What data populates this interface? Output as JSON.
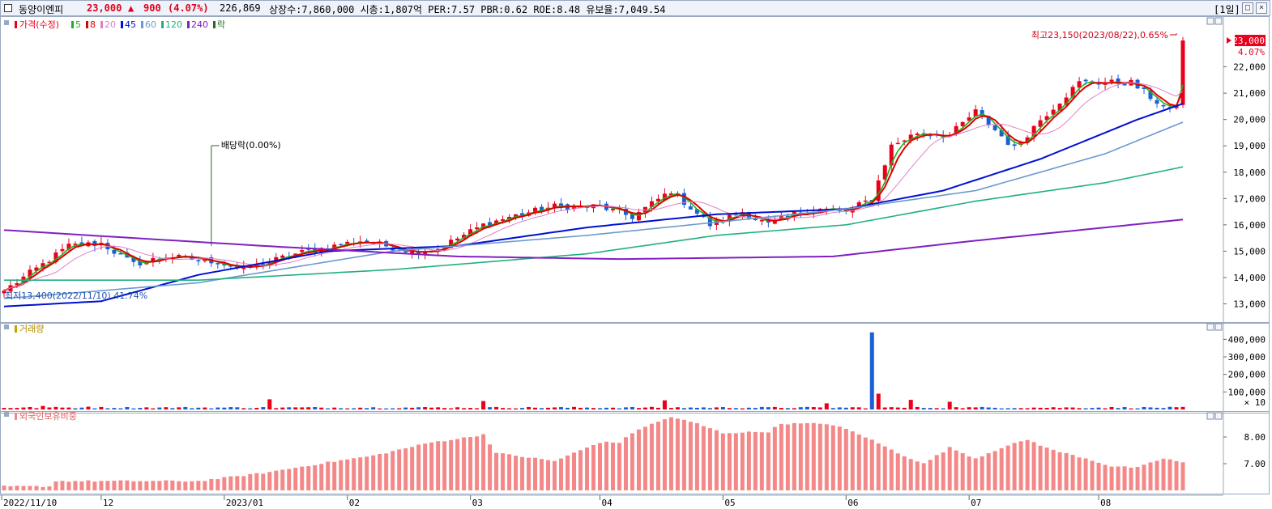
{
  "header": {
    "stock_name": "동양이엔피",
    "price": "23,000",
    "change_arrow": "▲",
    "change": "900",
    "change_pct": "(4.07%)",
    "volume": "226,869",
    "info": "상장수:7,860,000 시총:1,807억 PER:7.57 PBR:0.62 ROE:8.48 유보율:7,049.54",
    "period": "[1일]"
  },
  "legend": {
    "price_label": "가격(수정)",
    "ma": [
      {
        "label": "5",
        "color": "#20b020"
      },
      {
        "label": "8",
        "color": "#e00000"
      },
      {
        "label": "20",
        "color": "#e080c8"
      },
      {
        "label": "45",
        "color": "#0010d0"
      },
      {
        "label": "60",
        "color": "#6a9ad0"
      },
      {
        "label": "120",
        "color": "#20b080"
      },
      {
        "label": "240",
        "color": "#8020c0"
      },
      {
        "label": "락",
        "color": "#207020"
      }
    ],
    "volume_label": "거래량",
    "foreign_label": "외국인보유비중"
  },
  "annotations": {
    "high": "최고23,150(2023/08/22),0.65%",
    "low": "최저13,400(2022/11/10),41.74%",
    "dividend": "배당락(0.00%)",
    "current_price": "23,000",
    "current_pct": "4.07%"
  },
  "chart_data": [
    {
      "type": "candlestick",
      "title": "가격(수정)",
      "ylim": [
        12400,
        23800
      ],
      "yticks": [
        "13,000",
        "14,000",
        "15,000",
        "16,000",
        "17,000",
        "18,000",
        "19,000",
        "20,000",
        "21,000",
        "22,000"
      ],
      "ytick_values": [
        13000,
        14000,
        15000,
        16000,
        17000,
        18000,
        19000,
        20000,
        21000,
        22000
      ],
      "xticks": [
        {
          "label": "2022/11/10",
          "index": 0
        },
        {
          "label": "12",
          "index": 15
        },
        {
          "label": "2023/01",
          "index": 34
        },
        {
          "label": "02",
          "index": 53
        },
        {
          "label": "03",
          "index": 72
        },
        {
          "label": "04",
          "index": 92
        },
        {
          "label": "05",
          "index": 111
        },
        {
          "label": "06",
          "index": 130
        },
        {
          "label": "07",
          "index": 149
        },
        {
          "label": "08",
          "index": 169
        }
      ],
      "n_bars": 183,
      "anchors": [
        [
          0,
          13500
        ],
        [
          6,
          14500
        ],
        [
          10,
          15200
        ],
        [
          15,
          15300
        ],
        [
          20,
          14500
        ],
        [
          25,
          14800
        ],
        [
          33,
          14600
        ],
        [
          37,
          14300
        ],
        [
          45,
          14900
        ],
        [
          55,
          15400
        ],
        [
          63,
          15000
        ],
        [
          67,
          15100
        ],
        [
          74,
          16000
        ],
        [
          78,
          16300
        ],
        [
          85,
          16700
        ],
        [
          92,
          16700
        ],
        [
          97,
          16300
        ],
        [
          103,
          17300
        ],
        [
          109,
          16000
        ],
        [
          114,
          16500
        ],
        [
          118,
          16000
        ],
        [
          122,
          16400
        ],
        [
          126,
          16600
        ],
        [
          130,
          16500
        ],
        [
          134,
          17000
        ],
        [
          137,
          19000
        ],
        [
          141,
          19500
        ],
        [
          146,
          19400
        ],
        [
          150,
          20300
        ],
        [
          156,
          18900
        ],
        [
          160,
          20000
        ],
        [
          166,
          21400
        ],
        [
          174,
          21400
        ],
        [
          180,
          20300
        ],
        [
          185,
          21500
        ],
        [
          187,
          22200
        ],
        [
          188,
          23000
        ]
      ],
      "ma_lines": [
        {
          "name": "5",
          "color": "#20b020",
          "lag": 2
        },
        {
          "name": "8",
          "color": "#e00000",
          "lag": 3
        },
        {
          "name": "20",
          "color": "#e080c8",
          "lag": 8
        },
        {
          "name": "45",
          "color": "#0010d0",
          "points": [
            [
              0,
              12900
            ],
            [
              15,
              13100
            ],
            [
              30,
              14100
            ],
            [
              50,
              15000
            ],
            [
              70,
              15200
            ],
            [
              90,
              15900
            ],
            [
              110,
              16400
            ],
            [
              130,
              16600
            ],
            [
              145,
              17300
            ],
            [
              160,
              18500
            ],
            [
              175,
              20000
            ],
            [
              182,
              20600
            ]
          ]
        },
        {
          "name": "60",
          "color": "#6a9ad0",
          "points": [
            [
              0,
              13200
            ],
            [
              30,
              13800
            ],
            [
              60,
              15000
            ],
            [
              90,
              15600
            ],
            [
              110,
              16100
            ],
            [
              130,
              16600
            ],
            [
              150,
              17300
            ],
            [
              170,
              18700
            ],
            [
              182,
              19900
            ]
          ]
        },
        {
          "name": "120",
          "color": "#20b080",
          "points": [
            [
              0,
              13900
            ],
            [
              30,
              13900
            ],
            [
              60,
              14300
            ],
            [
              90,
              14900
            ],
            [
              110,
              15600
            ],
            [
              130,
              16000
            ],
            [
              150,
              16900
            ],
            [
              170,
              17600
            ],
            [
              182,
              18200
            ]
          ]
        },
        {
          "name": "240",
          "color": "#8020c0",
          "points": [
            [
              0,
              15800
            ],
            [
              40,
              15200
            ],
            [
              70,
              14800
            ],
            [
              95,
              14700
            ],
            [
              128,
              14800
            ],
            [
              150,
              15400
            ],
            [
              170,
              15900
            ],
            [
              182,
              16200
            ]
          ]
        }
      ]
    },
    {
      "type": "bar",
      "title": "거래량",
      "yticks": [
        "100,000",
        "200,000",
        "300,000",
        "400,000"
      ],
      "ytick_values": [
        100000,
        200000,
        300000,
        400000
      ],
      "ylim": [
        0,
        480000
      ],
      "unit": "× 10",
      "spikes": [
        [
          6,
          20000
        ],
        [
          13,
          16000
        ],
        [
          41,
          58000
        ],
        [
          74,
          48000
        ],
        [
          102,
          52000
        ],
        [
          127,
          35000
        ],
        [
          134,
          440000
        ],
        [
          135,
          90000
        ],
        [
          140,
          55000
        ],
        [
          146,
          44000
        ],
        [
          183,
          18000
        ]
      ],
      "base": 6000
    },
    {
      "type": "bar",
      "title": "외국인보유비중",
      "yticks": [
        "7.00",
        "8.00"
      ],
      "ytick_values": [
        7.0,
        8.0
      ],
      "ylim": [
        6.0,
        8.85
      ],
      "anchors": [
        [
          0,
          6.15
        ],
        [
          7,
          6.15
        ],
        [
          8,
          6.35
        ],
        [
          30,
          6.35
        ],
        [
          40,
          6.65
        ],
        [
          50,
          7.05
        ],
        [
          57,
          7.3
        ],
        [
          66,
          7.8
        ],
        [
          72,
          8.0
        ],
        [
          74,
          8.1
        ],
        [
          76,
          7.4
        ],
        [
          85,
          7.1
        ],
        [
          92,
          7.8
        ],
        [
          95,
          7.8
        ],
        [
          98,
          8.3
        ],
        [
          103,
          8.75
        ],
        [
          107,
          8.5
        ],
        [
          111,
          8.15
        ],
        [
          118,
          8.2
        ],
        [
          120,
          8.5
        ],
        [
          127,
          8.5
        ],
        [
          130,
          8.3
        ],
        [
          133,
          8.0
        ],
        [
          138,
          7.4
        ],
        [
          142,
          7.0
        ],
        [
          146,
          7.6
        ],
        [
          150,
          7.2
        ],
        [
          154,
          7.6
        ],
        [
          158,
          7.9
        ],
        [
          162,
          7.5
        ],
        [
          167,
          7.2
        ],
        [
          171,
          6.9
        ],
        [
          175,
          6.85
        ],
        [
          179,
          7.2
        ],
        [
          183,
          7.0
        ]
      ]
    }
  ]
}
